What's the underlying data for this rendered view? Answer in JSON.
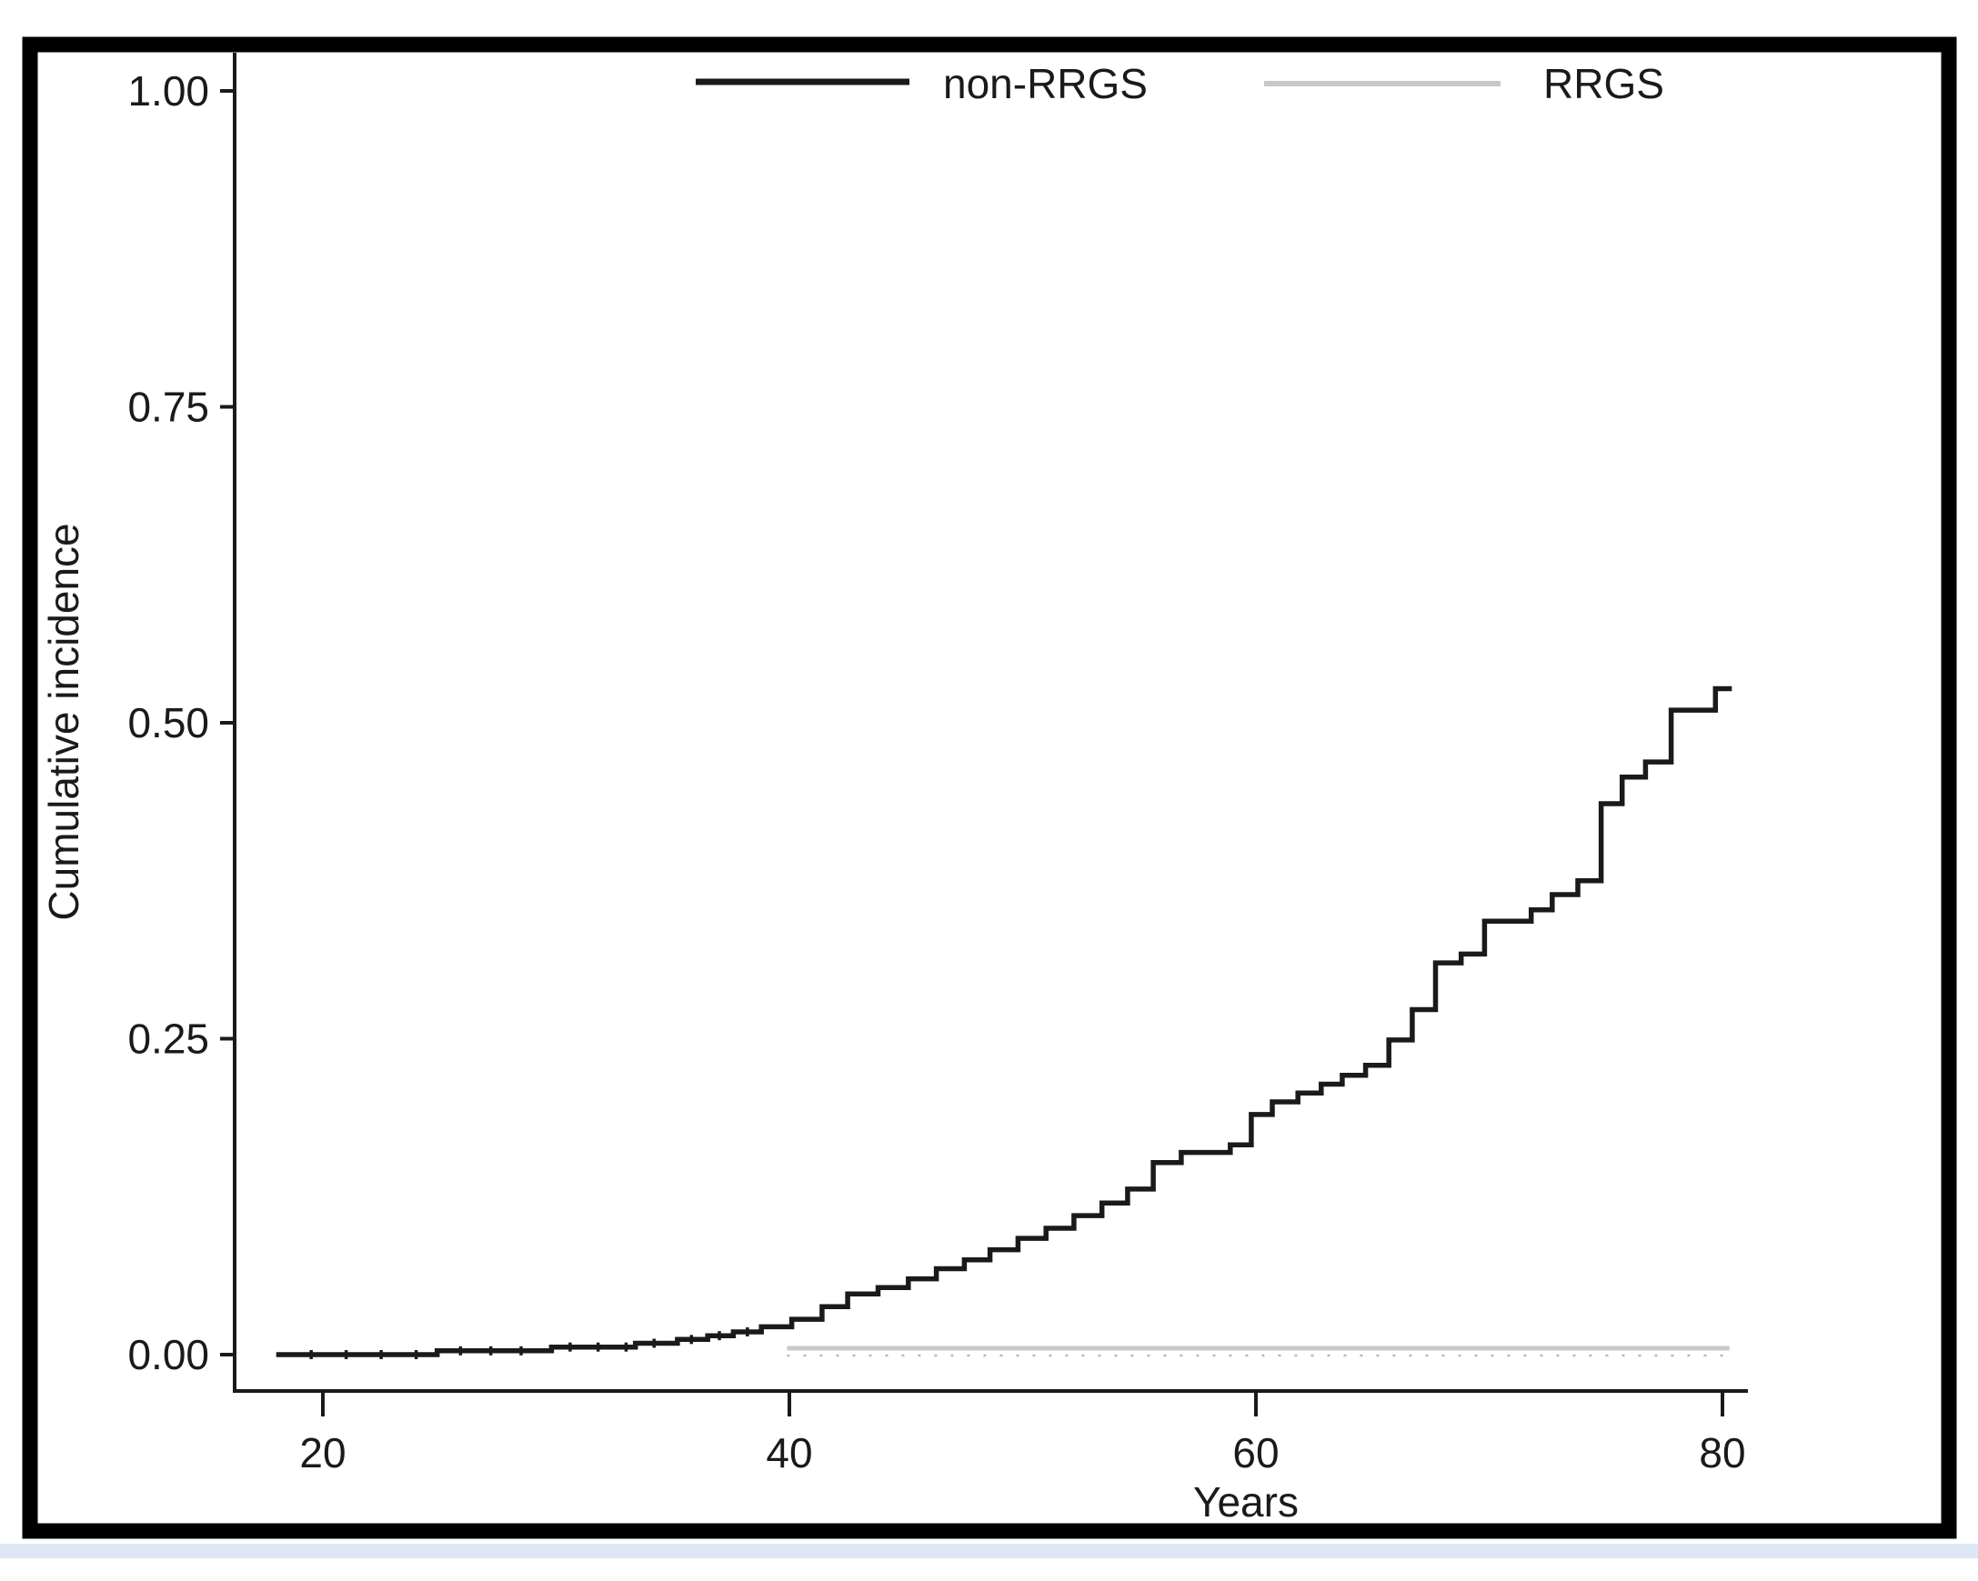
{
  "figure": {
    "frame_color": "#000000",
    "background_color": "#ffffff",
    "bottom_strip_color": "#dde7f6"
  },
  "chart_data": {
    "type": "line",
    "subtype": "step",
    "title": "",
    "xlabel": "Years",
    "ylabel": "Cumulative incidence",
    "xlim": [
      16.2,
      81.2
    ],
    "ylim": [
      0,
      1.0
    ],
    "grid": false,
    "legend_position": "top",
    "x_ticks": [
      {
        "label": "20",
        "value": 20
      },
      {
        "label": "40",
        "value": 40
      },
      {
        "label": "60",
        "value": 60
      },
      {
        "label": "80",
        "value": 80
      }
    ],
    "y_ticks": [
      {
        "label": "1.00",
        "value": 1.0
      },
      {
        "label": "0.75",
        "value": 0.75
      },
      {
        "label": "0.50",
        "value": 0.5
      },
      {
        "label": "0.25",
        "value": 0.25
      },
      {
        "label": "0.00",
        "value": 0.0
      }
    ],
    "legend": [
      {
        "label": "non-RRGS",
        "color": "#1a1a1a"
      },
      {
        "label": "RRGS",
        "color": "#c8c8c8"
      }
    ],
    "series": [
      {
        "name": "non-RRGS",
        "color": "#1a1a1a",
        "line_width": 5.5,
        "end_x": 80.4,
        "points": [
          [
            18.0,
            0.0
          ],
          [
            24.9,
            0.003
          ],
          [
            29.8,
            0.006
          ],
          [
            33.4,
            0.009
          ],
          [
            35.2,
            0.012
          ],
          [
            36.5,
            0.015
          ],
          [
            37.6,
            0.018
          ],
          [
            38.8,
            0.022
          ],
          [
            40.1,
            0.028
          ],
          [
            41.4,
            0.038
          ],
          [
            42.5,
            0.048
          ],
          [
            43.8,
            0.053
          ],
          [
            45.1,
            0.06
          ],
          [
            46.3,
            0.068
          ],
          [
            47.5,
            0.075
          ],
          [
            48.6,
            0.083
          ],
          [
            49.8,
            0.092
          ],
          [
            51.0,
            0.1
          ],
          [
            52.2,
            0.11
          ],
          [
            53.4,
            0.12
          ],
          [
            54.5,
            0.131
          ],
          [
            55.6,
            0.152
          ],
          [
            56.8,
            0.16
          ],
          [
            58.9,
            0.166
          ],
          [
            59.8,
            0.19
          ],
          [
            60.7,
            0.2
          ],
          [
            61.8,
            0.207
          ],
          [
            62.8,
            0.214
          ],
          [
            63.7,
            0.221
          ],
          [
            64.7,
            0.229
          ],
          [
            65.7,
            0.249
          ],
          [
            66.7,
            0.273
          ],
          [
            67.7,
            0.31
          ],
          [
            68.8,
            0.317
          ],
          [
            69.8,
            0.343
          ],
          [
            71.8,
            0.352
          ],
          [
            72.7,
            0.364
          ],
          [
            73.8,
            0.375
          ],
          [
            74.8,
            0.436
          ],
          [
            75.7,
            0.457
          ],
          [
            76.7,
            0.469
          ],
          [
            77.8,
            0.51
          ],
          [
            79.7,
            0.527
          ]
        ],
        "censor_mark_times": [
          19.5,
          21,
          22.5,
          24,
          25.9,
          27.2,
          28.5,
          30.6,
          31.8,
          33,
          34.2,
          35.8,
          37,
          38.2
        ]
      },
      {
        "name": "RRGS",
        "color": "#c8c8c8",
        "line_width": 5,
        "end_x": 80.3,
        "points": [
          [
            39.9,
            0.005
          ],
          [
            80.3,
            0.005
          ]
        ],
        "censor_style": "dotted-below"
      }
    ]
  }
}
